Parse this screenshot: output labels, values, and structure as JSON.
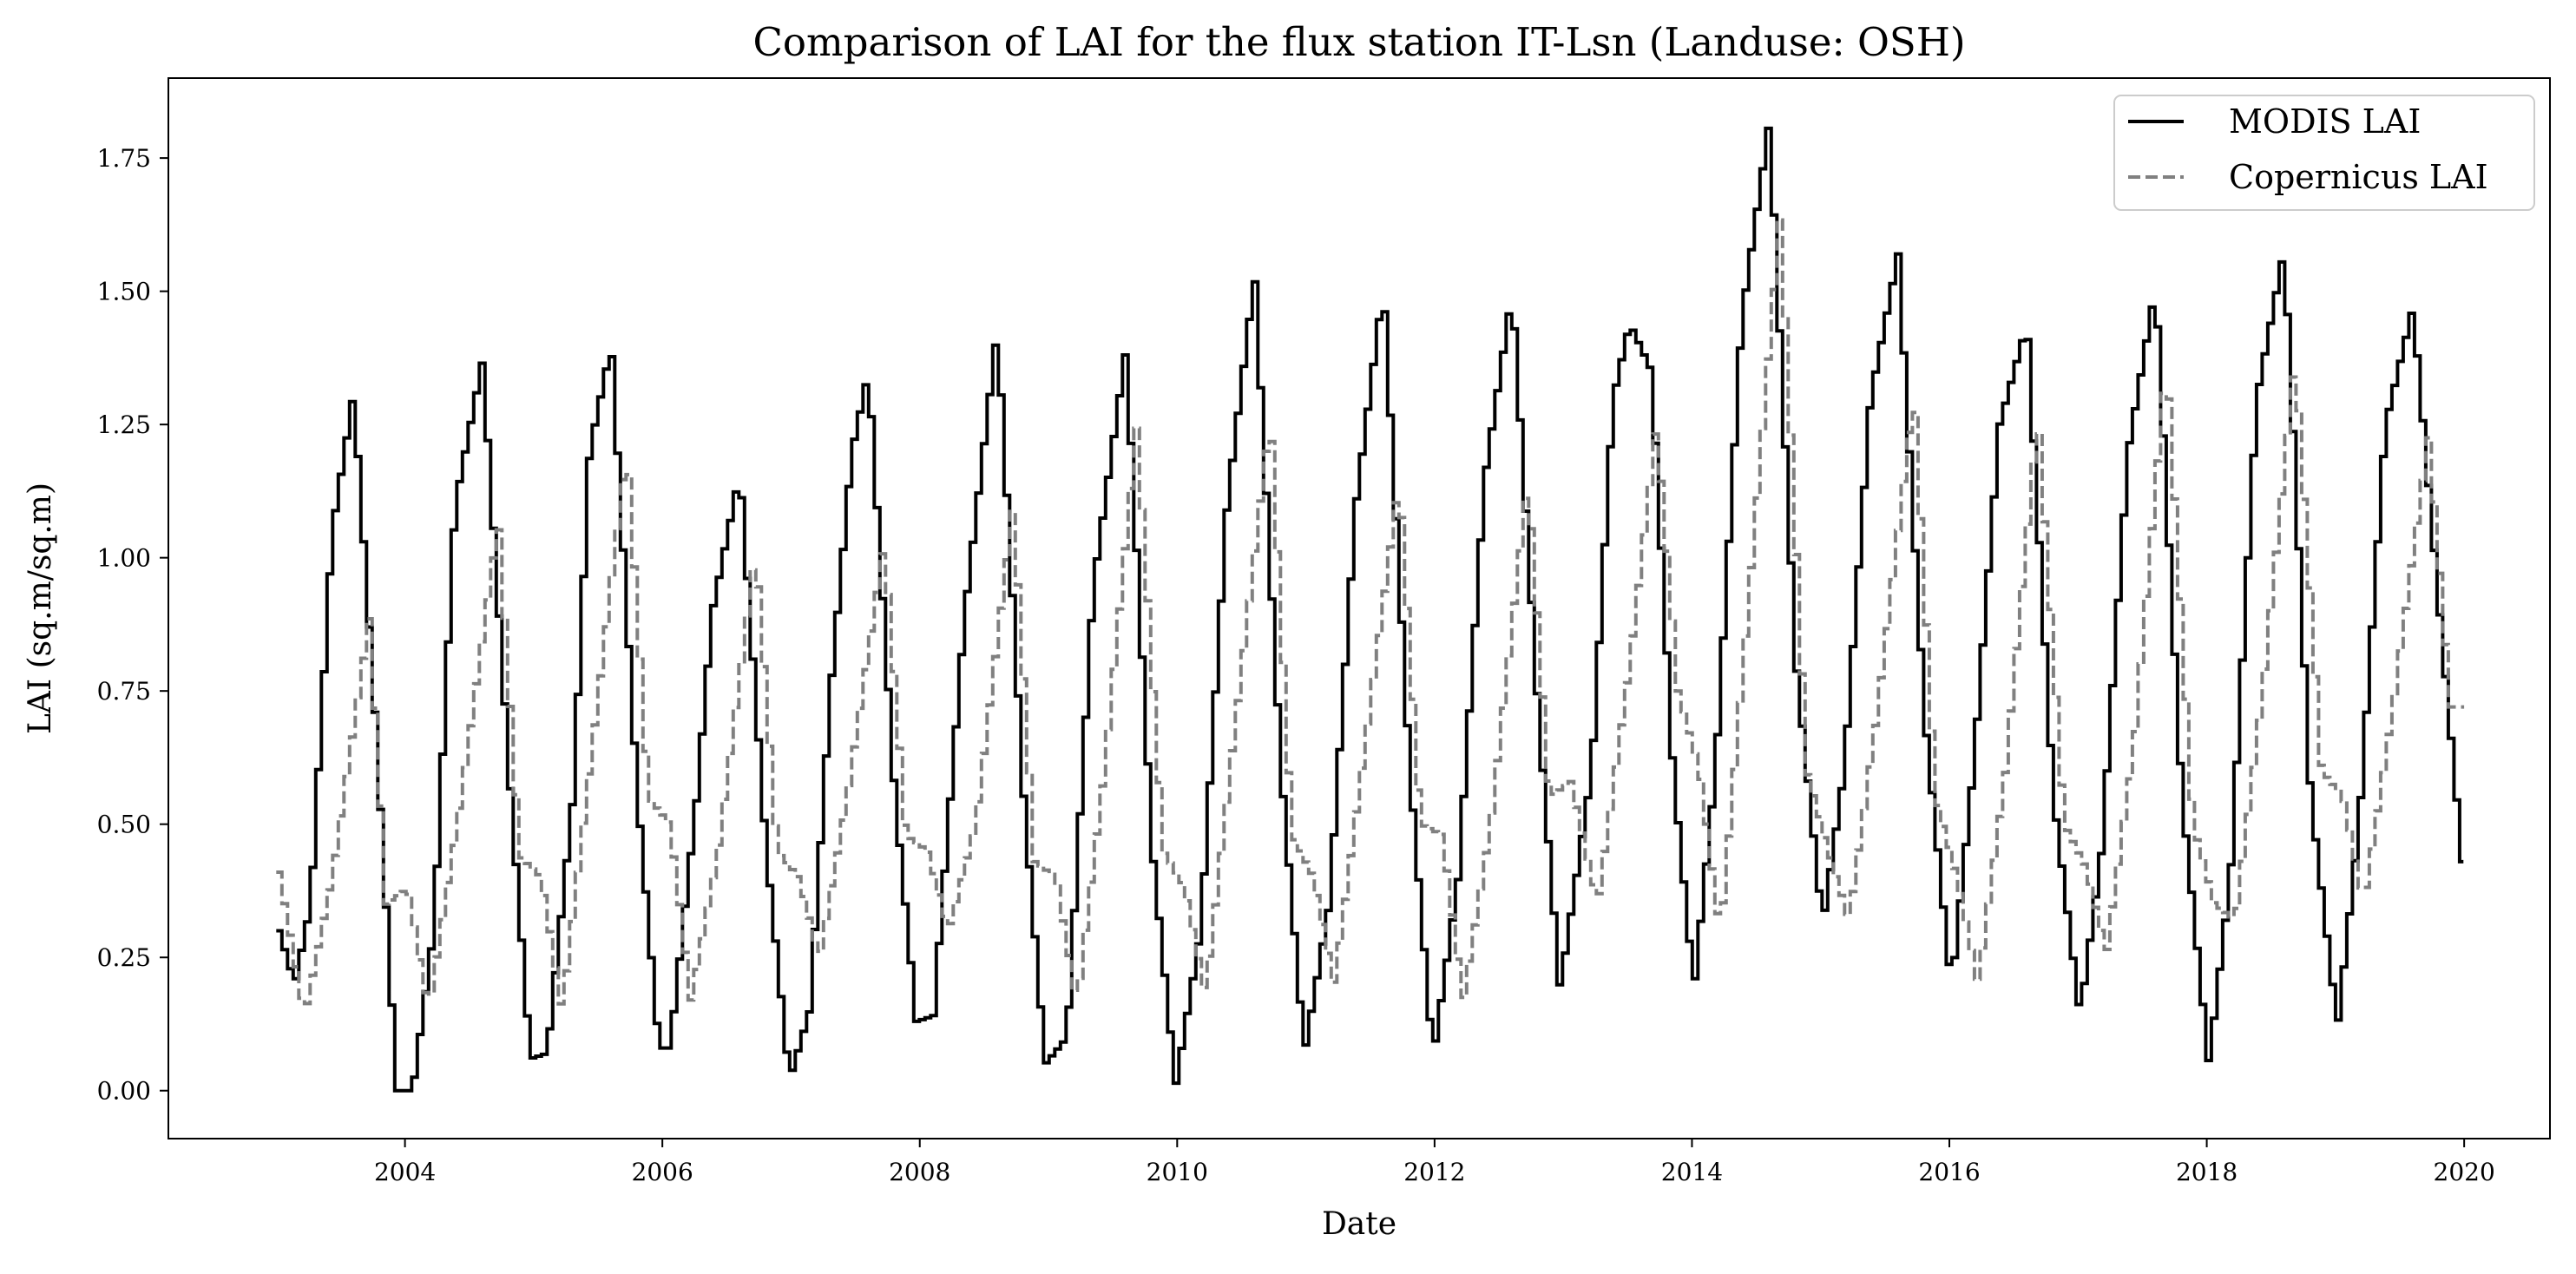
{
  "chart_data": {
    "type": "line",
    "title": "Comparison of LAI for the flux station IT-Lsn (Landuse: OSH)",
    "xlabel": "Date",
    "ylabel": "LAI (sq.m/sq.m)",
    "xlim": [
      "2002-03-01",
      "2020-09-01"
    ],
    "ylim": [
      -0.09,
      1.9
    ],
    "xtick_labels": [
      "2004",
      "2006",
      "2008",
      "2010",
      "2012",
      "2014",
      "2016",
      "2018",
      "2020"
    ],
    "ytick_labels": [
      "0.00",
      "0.25",
      "0.50",
      "0.75",
      "1.00",
      "1.25",
      "1.50",
      "1.75"
    ],
    "legend_position": "upper right",
    "grid": false,
    "series": [
      {
        "name": "MODIS LAI",
        "color": "#000000",
        "style": "solid",
        "points": [
          [
            "2003-01-01",
            0.3
          ],
          [
            "2003-02-15",
            0.2
          ],
          [
            "2003-04-01",
            0.35
          ],
          [
            "2003-06-01",
            1.05
          ],
          [
            "2003-08-01",
            1.31
          ],
          [
            "2003-10-01",
            0.7
          ],
          [
            "2003-12-01",
            0.0
          ],
          [
            "2004-01-15",
            0.0
          ],
          [
            "2004-03-15",
            0.3
          ],
          [
            "2004-05-15",
            1.1
          ],
          [
            "2004-08-01",
            1.37
          ],
          [
            "2004-10-15",
            0.6
          ],
          [
            "2004-12-15",
            0.06
          ],
          [
            "2005-02-01",
            0.07
          ],
          [
            "2005-04-15",
            0.55
          ],
          [
            "2005-06-01",
            1.2
          ],
          [
            "2005-08-01",
            1.4
          ],
          [
            "2005-10-15",
            0.55
          ],
          [
            "2005-12-15",
            0.08
          ],
          [
            "2006-01-15",
            0.08
          ],
          [
            "2006-04-01",
            0.55
          ],
          [
            "2006-05-15",
            0.9
          ],
          [
            "2006-08-01",
            1.16
          ],
          [
            "2006-10-15",
            0.45
          ],
          [
            "2006-12-20",
            0.02
          ],
          [
            "2007-02-15",
            0.15
          ],
          [
            "2007-04-15",
            0.75
          ],
          [
            "2007-06-15",
            1.2
          ],
          [
            "2007-08-01",
            1.35
          ],
          [
            "2007-10-15",
            0.55
          ],
          [
            "2007-12-15",
            0.13
          ],
          [
            "2008-02-01",
            0.14
          ],
          [
            "2008-05-01",
            0.9
          ],
          [
            "2008-08-01",
            1.43
          ],
          [
            "2008-10-15",
            0.55
          ],
          [
            "2008-12-15",
            0.05
          ],
          [
            "2009-02-15",
            0.1
          ],
          [
            "2009-05-01",
            0.95
          ],
          [
            "2009-08-01",
            1.39
          ],
          [
            "2009-10-15",
            0.45
          ],
          [
            "2009-12-20",
            0.01
          ],
          [
            "2010-03-01",
            0.3
          ],
          [
            "2010-05-15",
            1.1
          ],
          [
            "2010-08-01",
            1.53
          ],
          [
            "2010-10-15",
            0.6
          ],
          [
            "2010-12-20",
            0.07
          ],
          [
            "2011-03-01",
            0.35
          ],
          [
            "2011-05-15",
            1.1
          ],
          [
            "2011-08-01",
            1.51
          ],
          [
            "2011-10-15",
            0.6
          ],
          [
            "2011-12-20",
            0.06
          ],
          [
            "2012-03-01",
            0.4
          ],
          [
            "2012-05-15",
            1.15
          ],
          [
            "2012-08-01",
            1.5
          ],
          [
            "2012-10-15",
            0.7
          ],
          [
            "2012-12-15",
            0.19
          ],
          [
            "2013-03-15",
            0.6
          ],
          [
            "2013-05-15",
            1.3
          ],
          [
            "2013-07-01",
            1.44
          ],
          [
            "2013-09-01",
            1.35
          ],
          [
            "2013-11-01",
            0.6
          ],
          [
            "2013-12-30",
            0.19
          ],
          [
            "2014-03-01",
            0.6
          ],
          [
            "2014-05-15",
            1.45
          ],
          [
            "2014-08-01",
            1.82
          ],
          [
            "2014-10-15",
            0.8
          ],
          [
            "2014-12-30",
            0.31
          ],
          [
            "2015-03-01",
            0.6
          ],
          [
            "2015-05-15",
            1.3
          ],
          [
            "2015-08-01",
            1.57
          ],
          [
            "2015-10-15",
            0.7
          ],
          [
            "2015-12-30",
            0.19
          ],
          [
            "2016-03-01",
            0.6
          ],
          [
            "2016-05-15",
            1.25
          ],
          [
            "2016-08-01",
            1.44
          ],
          [
            "2016-10-15",
            0.55
          ],
          [
            "2016-12-30",
            0.14
          ],
          [
            "2017-03-01",
            0.45
          ],
          [
            "2017-05-15",
            1.2
          ],
          [
            "2017-08-01",
            1.51
          ],
          [
            "2017-10-15",
            0.55
          ],
          [
            "2017-12-30",
            0.05
          ],
          [
            "2018-03-01",
            0.4
          ],
          [
            "2018-05-15",
            1.3
          ],
          [
            "2018-08-01",
            1.58
          ],
          [
            "2018-10-15",
            0.55
          ],
          [
            "2018-12-30",
            0.12
          ],
          [
            "2019-03-01",
            0.5
          ],
          [
            "2019-05-15",
            1.25
          ],
          [
            "2019-08-01",
            1.47
          ],
          [
            "2019-10-15",
            0.9
          ],
          [
            "2019-12-30",
            0.35
          ]
        ]
      },
      {
        "name": "Copernicus LAI",
        "color": "#808080",
        "style": "dashed",
        "points": [
          [
            "2003-01-01",
            0.41
          ],
          [
            "2003-03-15",
            0.14
          ],
          [
            "2003-06-01",
            0.4
          ],
          [
            "2003-09-15",
            0.89
          ],
          [
            "2003-11-01",
            0.35
          ],
          [
            "2004-01-01",
            0.38
          ],
          [
            "2004-03-01",
            0.15
          ],
          [
            "2004-06-01",
            0.55
          ],
          [
            "2004-09-15",
            1.07
          ],
          [
            "2004-11-15",
            0.44
          ],
          [
            "2005-01-15",
            0.4
          ],
          [
            "2005-03-15",
            0.15
          ],
          [
            "2005-06-01",
            0.6
          ],
          [
            "2005-09-15",
            1.21
          ],
          [
            "2005-11-15",
            0.55
          ],
          [
            "2006-01-15",
            0.5
          ],
          [
            "2006-03-15",
            0.17
          ],
          [
            "2006-06-01",
            0.45
          ],
          [
            "2006-09-15",
            1.02
          ],
          [
            "2006-11-15",
            0.45
          ],
          [
            "2007-01-15",
            0.4
          ],
          [
            "2007-03-15",
            0.25
          ],
          [
            "2007-06-01",
            0.55
          ],
          [
            "2007-09-15",
            1.03
          ],
          [
            "2007-11-15",
            0.48
          ],
          [
            "2008-01-15",
            0.45
          ],
          [
            "2008-03-15",
            0.3
          ],
          [
            "2008-06-01",
            0.5
          ],
          [
            "2008-09-15",
            1.1
          ],
          [
            "2008-11-15",
            0.43
          ],
          [
            "2009-01-15",
            0.4
          ],
          [
            "2009-03-15",
            0.16
          ],
          [
            "2009-06-01",
            0.6
          ],
          [
            "2009-09-01",
            1.25
          ],
          [
            "2009-11-15",
            0.45
          ],
          [
            "2010-01-15",
            0.38
          ],
          [
            "2010-03-15",
            0.18
          ],
          [
            "2010-06-01",
            0.65
          ],
          [
            "2010-09-15",
            1.27
          ],
          [
            "2010-11-15",
            0.48
          ],
          [
            "2011-01-15",
            0.4
          ],
          [
            "2011-03-15",
            0.2
          ],
          [
            "2011-06-01",
            0.6
          ],
          [
            "2011-09-15",
            1.15
          ],
          [
            "2011-11-15",
            0.5
          ],
          [
            "2012-01-15",
            0.48
          ],
          [
            "2012-03-15",
            0.17
          ],
          [
            "2012-06-01",
            0.5
          ],
          [
            "2012-09-15",
            1.15
          ],
          [
            "2012-11-15",
            0.55
          ],
          [
            "2013-01-15",
            0.58
          ],
          [
            "2013-04-01",
            0.35
          ],
          [
            "2013-07-01",
            0.8
          ],
          [
            "2013-09-15",
            1.25
          ],
          [
            "2013-11-15",
            0.75
          ],
          [
            "2014-01-15",
            0.6
          ],
          [
            "2014-03-15",
            0.29
          ],
          [
            "2014-06-01",
            0.9
          ],
          [
            "2014-09-01",
            1.65
          ],
          [
            "2014-11-15",
            0.6
          ],
          [
            "2015-01-15",
            0.45
          ],
          [
            "2015-03-15",
            0.32
          ],
          [
            "2015-06-01",
            0.7
          ],
          [
            "2015-09-15",
            1.31
          ],
          [
            "2015-11-15",
            0.55
          ],
          [
            "2016-01-15",
            0.4
          ],
          [
            "2016-03-15",
            0.2
          ],
          [
            "2016-06-01",
            0.6
          ],
          [
            "2016-09-01",
            1.27
          ],
          [
            "2016-11-15",
            0.5
          ],
          [
            "2017-01-15",
            0.42
          ],
          [
            "2017-03-15",
            0.26
          ],
          [
            "2017-06-01",
            0.65
          ],
          [
            "2017-09-01",
            1.38
          ],
          [
            "2017-11-15",
            0.5
          ],
          [
            "2018-01-15",
            0.35
          ],
          [
            "2018-03-15",
            0.32
          ],
          [
            "2018-06-01",
            0.75
          ],
          [
            "2018-09-01",
            1.38
          ],
          [
            "2018-11-15",
            0.6
          ],
          [
            "2019-01-15",
            0.55
          ],
          [
            "2019-03-15",
            0.35
          ],
          [
            "2019-06-01",
            0.7
          ],
          [
            "2019-09-15",
            1.23
          ],
          [
            "2019-11-15",
            0.72
          ],
          [
            "2020-01-01",
            0.72
          ]
        ]
      }
    ]
  }
}
